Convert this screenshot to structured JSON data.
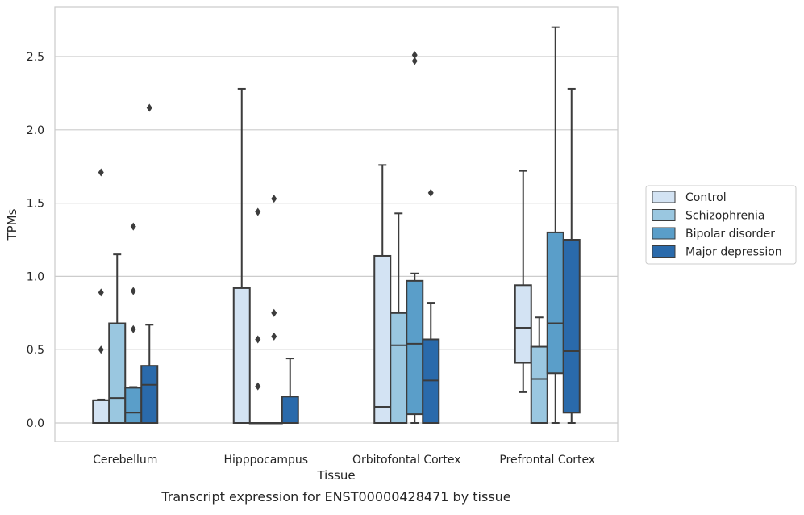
{
  "chart_data": {
    "type": "box",
    "title": "Transcript expression for ENST00000428471 by tissue",
    "xlabel": "Tissue",
    "ylabel": "TPMs",
    "ylim": [
      -0.13,
      2.83
    ],
    "yticks": [
      "0.0",
      "0.5",
      "1.0",
      "1.5",
      "2.0",
      "2.5"
    ],
    "grid": "horizontal",
    "legend_placement": "outside-right",
    "categories": [
      "Cerebellum",
      "Hipppocampus",
      "Orbitofontal Cortex",
      "Prefrontal Cortex"
    ],
    "series": [
      {
        "name": "Control",
        "color": "#d3e3f3",
        "boxes": [
          {
            "whislo": 0.0,
            "q1": 0.0,
            "med": 0.155,
            "q3": 0.155,
            "whishi": 0.16,
            "fliers": [
              0.5,
              0.89,
              1.71
            ]
          },
          {
            "whislo": 0.0,
            "q1": 0.0,
            "med": 0.0,
            "q3": 0.92,
            "whishi": 2.28,
            "fliers": []
          },
          {
            "whislo": 0.0,
            "q1": 0.0,
            "med": 0.11,
            "q3": 1.14,
            "whishi": 1.76,
            "fliers": []
          },
          {
            "whislo": 0.21,
            "q1": 0.41,
            "med": 0.65,
            "q3": 0.94,
            "whishi": 1.72,
            "fliers": []
          }
        ]
      },
      {
        "name": "Schizophrenia",
        "color": "#9ac7e0",
        "boxes": [
          {
            "whislo": 0.0,
            "q1": 0.0,
            "med": 0.17,
            "q3": 0.68,
            "whishi": 1.15,
            "fliers": []
          },
          {
            "whislo": 0.0,
            "q1": 0.0,
            "med": 0.0,
            "q3": 0.0,
            "whishi": 0.0,
            "fliers": [
              0.25,
              0.57,
              1.44
            ]
          },
          {
            "whislo": 0.0,
            "q1": 0.0,
            "med": 0.53,
            "q3": 0.75,
            "whishi": 1.43,
            "fliers": []
          },
          {
            "whislo": 0.0,
            "q1": 0.0,
            "med": 0.3,
            "q3": 0.52,
            "whishi": 0.72,
            "fliers": []
          }
        ]
      },
      {
        "name": "Bipolar disorder",
        "color": "#5a9ec9",
        "boxes": [
          {
            "whislo": 0.0,
            "q1": 0.0,
            "med": 0.07,
            "q3": 0.24,
            "whishi": 0.245,
            "fliers": [
              0.64,
              0.9,
              1.34
            ]
          },
          {
            "whislo": 0.0,
            "q1": 0.0,
            "med": 0.0,
            "q3": 0.0,
            "whishi": 0.0,
            "fliers": [
              0.59,
              0.75,
              1.53
            ]
          },
          {
            "whislo": 0.0,
            "q1": 0.06,
            "med": 0.54,
            "q3": 0.97,
            "whishi": 1.02,
            "fliers": [
              2.47,
              2.51
            ]
          },
          {
            "whislo": 0.0,
            "q1": 0.34,
            "med": 0.68,
            "q3": 1.3,
            "whishi": 2.7,
            "fliers": []
          }
        ]
      },
      {
        "name": "Major depression",
        "color": "#2a6aab",
        "boxes": [
          {
            "whislo": 0.0,
            "q1": 0.0,
            "med": 0.26,
            "q3": 0.39,
            "whishi": 0.67,
            "fliers": [
              2.15
            ]
          },
          {
            "whislo": 0.0,
            "q1": 0.0,
            "med": 0.0,
            "q3": 0.18,
            "whishi": 0.44,
            "fliers": []
          },
          {
            "whislo": 0.0,
            "q1": 0.0,
            "med": 0.29,
            "q3": 0.57,
            "whishi": 0.82,
            "fliers": [
              1.57
            ]
          },
          {
            "whislo": 0.0,
            "q1": 0.07,
            "med": 0.49,
            "q3": 1.25,
            "whishi": 2.28,
            "fliers": []
          }
        ]
      }
    ]
  }
}
